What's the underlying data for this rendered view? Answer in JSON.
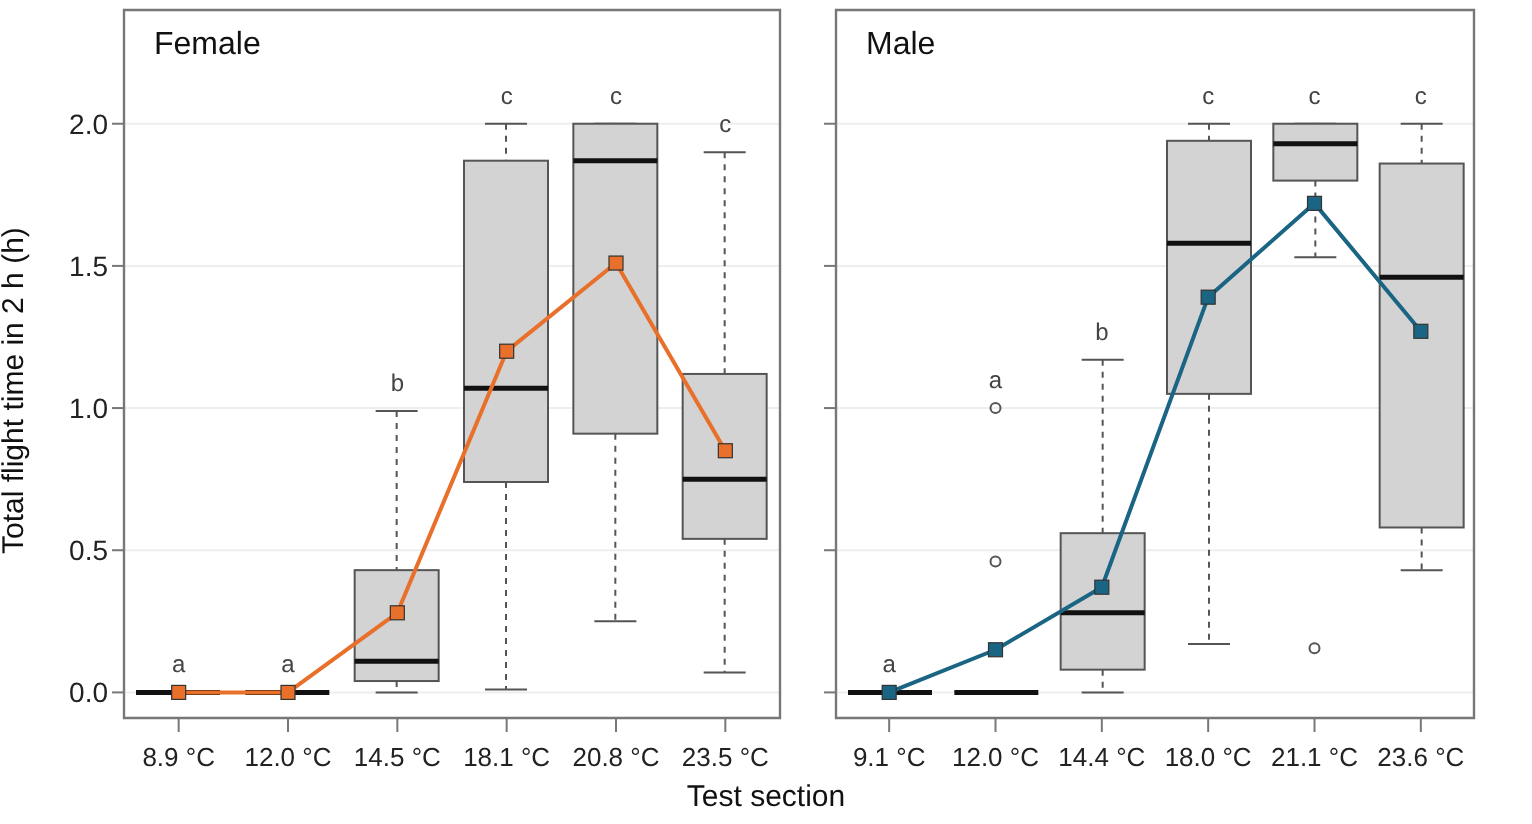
{
  "chart_data": [
    {
      "type": "box",
      "title": "Female",
      "ylabel": "Total flight time in 2 h (h)",
      "xlabel": "Test section",
      "categories": [
        "8.9 °C",
        "12.0 °C",
        "14.5 °C",
        "18.1 °C",
        "20.8 °C",
        "23.5 °C"
      ],
      "boxes": [
        {
          "low": 0,
          "q1": 0,
          "median": 0,
          "q3": 0,
          "high": 0
        },
        {
          "low": 0,
          "q1": 0,
          "median": 0,
          "q3": 0,
          "high": 0
        },
        {
          "low": 0,
          "q1": 0.04,
          "median": 0.11,
          "q3": 0.43,
          "high": 0.99
        },
        {
          "low": 0.01,
          "q1": 0.74,
          "median": 1.07,
          "q3": 1.87,
          "high": 2.0
        },
        {
          "low": 0.25,
          "q1": 0.91,
          "median": 1.87,
          "q3": 2.0,
          "high": 2.0
        },
        {
          "low": 0.07,
          "q1": 0.54,
          "median": 0.75,
          "q3": 1.12,
          "high": 1.9
        }
      ],
      "series": [
        {
          "type": "line",
          "color": "#e8702a",
          "values": [
            0,
            0,
            0.28,
            1.2,
            1.51,
            0.85
          ]
        }
      ],
      "marker": "square",
      "ylim": [
        -0.09,
        2.4
      ],
      "yticks": [
        {
          "value": 0,
          "label": "0.0"
        },
        {
          "value": 0.5,
          "label": "0.5"
        },
        {
          "value": 1,
          "label": "1.0"
        },
        {
          "value": 1.5,
          "label": "1.5"
        },
        {
          "value": 2,
          "label": "2.0"
        }
      ],
      "grid": "y",
      "colors": [
        "#111111",
        "#111111",
        "#d3d3d3",
        "#d3d3d3",
        "#d3d3d3",
        "#d3d3d3"
      ],
      "annotations": [
        "a",
        "a",
        "b",
        "c",
        "c",
        "c"
      ]
    },
    {
      "type": "box",
      "title": "Male",
      "categories": [
        "9.1 °C",
        "12.0 °C",
        "14.4 °C",
        "18.0 °C",
        "21.1 °C",
        "23.6 °C"
      ],
      "boxes": [
        {
          "low": 0,
          "q1": 0,
          "median": 0,
          "q3": 0,
          "high": 0
        },
        {
          "low": 0,
          "q1": 0,
          "median": 0,
          "q3": 0,
          "high": 0,
          "outliers": [
            1.0,
            0.46
          ]
        },
        {
          "low": 0,
          "q1": 0.08,
          "median": 0.28,
          "q3": 0.56,
          "high": 1.17
        },
        {
          "low": 0.17,
          "q1": 1.05,
          "median": 1.58,
          "q3": 1.94,
          "high": 2.0
        },
        {
          "low": 1.53,
          "q1": 1.8,
          "median": 1.93,
          "q3": 2.0,
          "high": 2.0,
          "outliers": [
            0.155
          ]
        },
        {
          "low": 0.43,
          "q1": 0.58,
          "median": 1.46,
          "q3": 1.86,
          "high": 2.0
        }
      ],
      "series": [
        {
          "type": "line",
          "color": "#1b6584",
          "values": [
            0,
            0.15,
            0.37,
            1.39,
            1.72,
            1.27
          ]
        }
      ],
      "marker": "square",
      "ylim": [
        -0.09,
        2.4
      ],
      "yticks": [
        {
          "value": 0,
          "label": null
        },
        {
          "value": 0.5,
          "label": null
        },
        {
          "value": 1,
          "label": null
        },
        {
          "value": 1.5,
          "label": null
        },
        {
          "value": 2,
          "label": null
        }
      ],
      "grid": "y",
      "tick_labels": "x",
      "colors": [
        "#111111",
        "#111111",
        "#d3d3d3",
        "#d3d3d3",
        "#d3d3d3",
        "#d3d3d3"
      ],
      "annotations": [
        "a",
        "a",
        "b",
        "c",
        "c",
        "c"
      ]
    }
  ]
}
